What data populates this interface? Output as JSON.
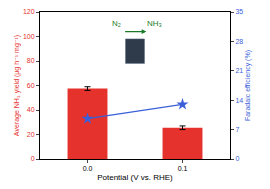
{
  "chart_data": {
    "type": "bar",
    "x_label": "Potential (V vs. RHE)",
    "y_label": "Average NH₃ yield (μg h⁻¹ mg⁻¹)",
    "y2_label": "Faradaic efficiency (%)",
    "categories": [
      "0.0",
      "0.1"
    ],
    "series": [
      {
        "type": "bar",
        "color": "#e5322d",
        "values": [
          57.5,
          25.5
        ],
        "errors": [
          1.5,
          1.5
        ]
      },
      {
        "type": "line",
        "axis": "y2",
        "color": "#3a5fd9",
        "marker": "star",
        "values": [
          9.6,
          13.0
        ]
      }
    ],
    "ylim": [
      0,
      120
    ],
    "yticks": [
      0,
      20,
      40,
      60,
      80,
      100,
      120
    ],
    "y2lim": [
      0,
      35
    ],
    "y2ticks": [
      0,
      7,
      14,
      21,
      28,
      35
    ],
    "annotations": [
      "N₂",
      "NH₃"
    ]
  }
}
